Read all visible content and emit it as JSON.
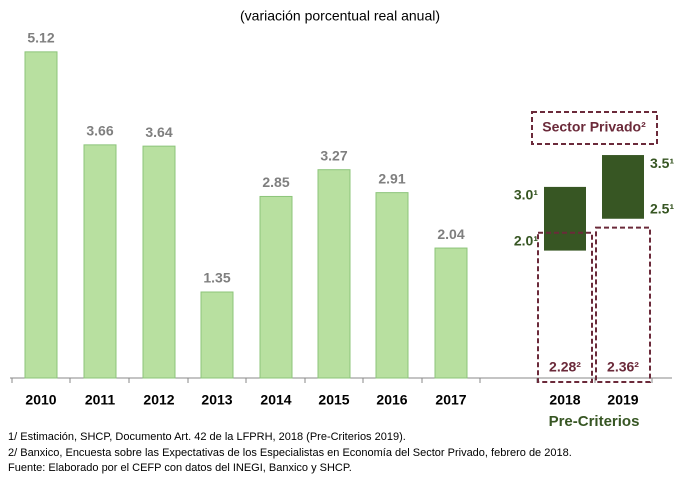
{
  "chart_data": {
    "type": "bar",
    "subtitle": "(variación porcentual real anual)",
    "categories": [
      "2010",
      "2011",
      "2012",
      "2013",
      "2014",
      "2015",
      "2016",
      "2017",
      "2018",
      "2019"
    ],
    "values": [
      5.12,
      3.66,
      3.64,
      1.35,
      2.85,
      3.27,
      2.91,
      2.04,
      null,
      null
    ],
    "color": "#b8e0a0",
    "estimate_low": [
      null,
      null,
      null,
      null,
      null,
      null,
      null,
      null,
      2.0,
      2.5
    ],
    "estimate_low_labels": [
      null,
      null,
      null,
      null,
      null,
      null,
      null,
      null,
      "2.0¹",
      "2.5¹"
    ],
    "estimate_high": [
      null,
      null,
      null,
      null,
      null,
      null,
      null,
      null,
      3.0,
      3.5
    ],
    "estimate_high_labels": [
      null,
      null,
      null,
      null,
      null,
      null,
      null,
      null,
      "3.0¹",
      "3.5¹"
    ],
    "estimate_color": "#375623",
    "private_sector": {
      "label": "Sector Privado²",
      "values": [
        null,
        null,
        null,
        null,
        null,
        null,
        null,
        null,
        2.28,
        2.36
      ],
      "value_labels": [
        null,
        null,
        null,
        null,
        null,
        null,
        null,
        null,
        "2.28²",
        "2.36²"
      ],
      "color": "#6b2a3a"
    },
    "group_label": "Pre-Criterios",
    "footnotes": [
      "1/ Estimación, SHCP, Documento  Art. 42 de la LFPRH, 2018 (Pre-Criterios 2019).",
      "2/ Banxico, Encuesta sobre las Expectativas de los Especialistas en Economía del Sector Privado, febrero de 2018.",
      "Fuente: Elaborado por el CEFP con datos del INEGI, Banxico y SHCP."
    ]
  }
}
